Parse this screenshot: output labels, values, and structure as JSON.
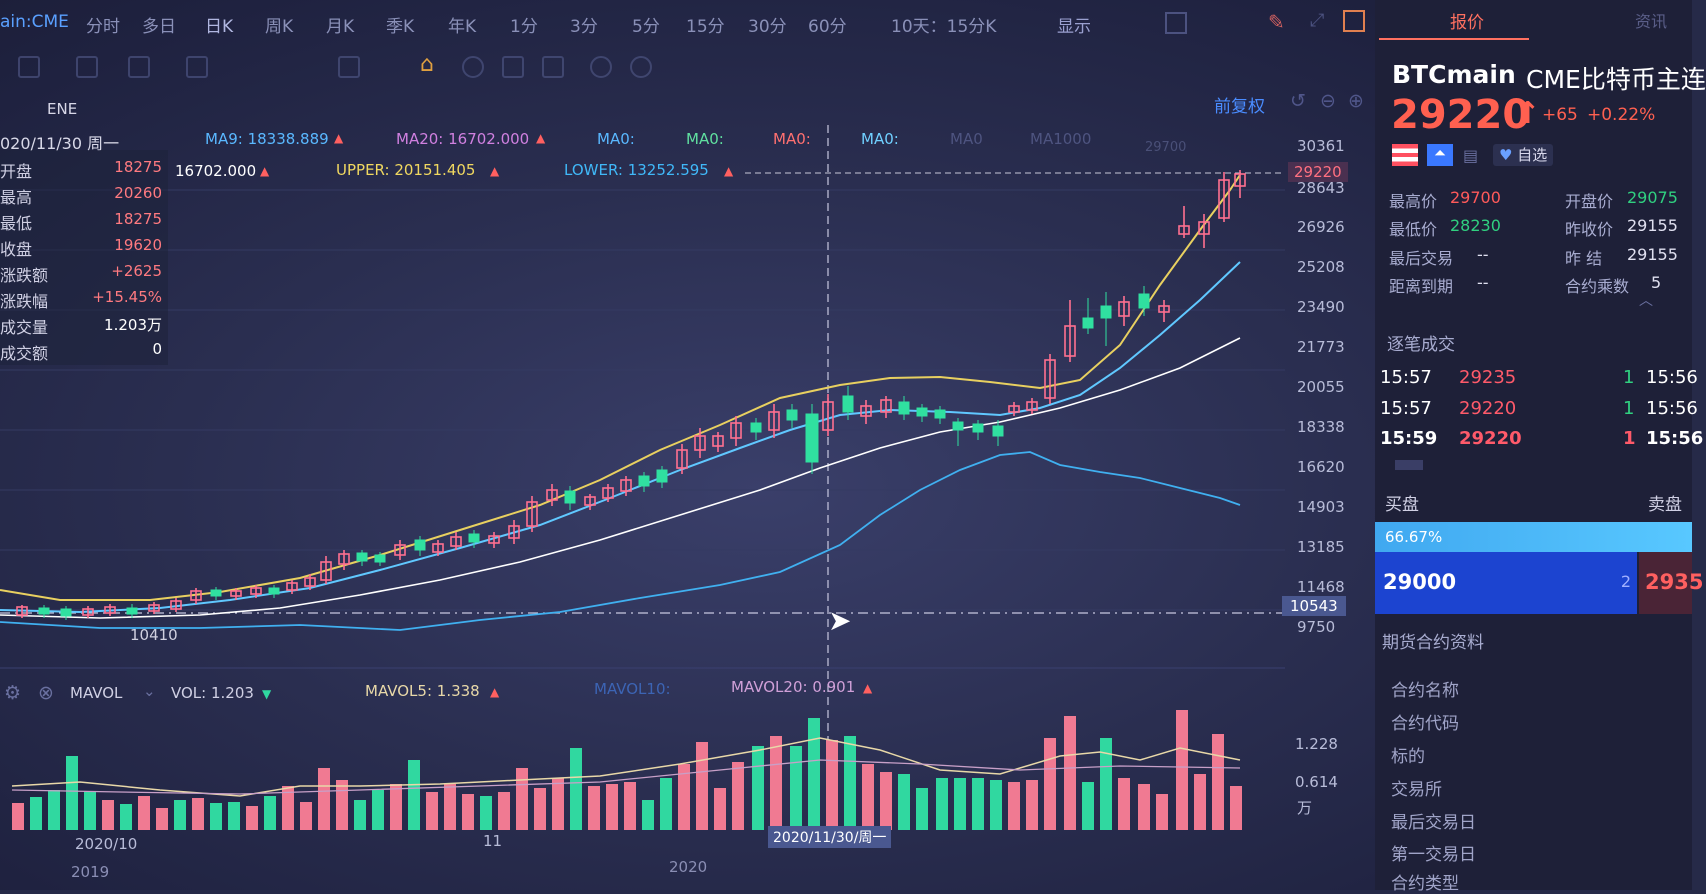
{
  "toolbar": {
    "symbol": "ain:CME",
    "items": [
      "分时",
      "多日",
      "日K",
      "周K",
      "月K",
      "季K",
      "年K",
      "1分",
      "3分",
      "5分",
      "15分",
      "30分",
      "60分",
      "10天：15分K"
    ],
    "display": "显示"
  },
  "indicators": {
    "ene_label": "ENE",
    "date_label": "020/11/30 周一",
    "ma9": "MA9: 18338.889",
    "ma20": "MA20: 16702.000",
    "ma0a": "MA0:",
    "ma0b": "MA0:",
    "ma0c": "MA0:",
    "ma0d": "MA0:",
    "ma0e": "MA0",
    "ma1000": "MA1000",
    "ene_mid": "16702.000",
    "upper": "UPPER: 20151.405",
    "lower": "LOWER: 13252.595",
    "restore": "前复权",
    "faint": "29700"
  },
  "info_panel": {
    "rows": [
      {
        "label": "开盘",
        "value": "18275"
      },
      {
        "label": "最高",
        "value": "20260"
      },
      {
        "label": "最低",
        "value": "18275"
      },
      {
        "label": "收盘",
        "value": "19620"
      },
      {
        "label": "涨跌额",
        "value": "+2625"
      },
      {
        "label": "涨跌幅",
        "value": "+15.45%"
      },
      {
        "label": "成交量",
        "value": "1.203万"
      },
      {
        "label": "成交额",
        "value": "0"
      }
    ]
  },
  "price_axis": {
    "ticks": [
      "30361",
      "28643",
      "26926",
      "25208",
      "23490",
      "21773",
      "20055",
      "18338",
      "16620",
      "14903",
      "13185",
      "11468",
      "9750"
    ],
    "current_price_tag": "29220",
    "cursor_price_tag": "10543",
    "low_marker": "10410"
  },
  "volume": {
    "indicator": "MAVOL",
    "vol": "VOL: 1.203",
    "mavol5": "MAVOL5: 1.338",
    "mavol10": "MAVOL10:",
    "mavol20": "MAVOL20: 0.901",
    "ticks": [
      "1.228",
      "0.614",
      "万"
    ]
  },
  "time_axis": {
    "labels_top": [
      "2020/10",
      "11"
    ],
    "labels_bottom": [
      "2019",
      "2020"
    ],
    "cursor_date": "2020/11/30/周一"
  },
  "quote": {
    "tab": "报价",
    "tab2": "资讯",
    "symbol": "BTCmain",
    "name": "CME比特币主连",
    "price": "29220",
    "change": "+65",
    "change_pct": "+0.22%",
    "watch_label": "自选",
    "stats": [
      {
        "label": "最高价",
        "value": "29700",
        "color": "#ff5a5a"
      },
      {
        "label": "开盘价",
        "value": "29075",
        "color": "#30d080"
      },
      {
        "label": "最低价",
        "value": "28230",
        "color": "#30d080"
      },
      {
        "label": "昨收价",
        "value": "29155",
        "color": "#e0e0f0"
      },
      {
        "label": "最后交易",
        "value": "--",
        "color": "#e0e0f0"
      },
      {
        "label": "昨 结",
        "value": "29155",
        "color": "#e0e0f0"
      },
      {
        "label": "距离到期",
        "value": "--",
        "color": "#e0e0f0"
      },
      {
        "label": "合约乘数",
        "value": "5",
        "color": "#e0e0f0"
      }
    ],
    "trades_title": "逐笔成交",
    "trades": [
      {
        "time": "15:57",
        "price": "29235",
        "qty": "1",
        "time2": "15:56"
      },
      {
        "time": "15:57",
        "price": "29220",
        "qty": "1",
        "time2": "15:56"
      },
      {
        "time": "15:59",
        "price": "29220",
        "qty": "1",
        "time2": "15:56"
      }
    ],
    "buy_label": "买盘",
    "sell_label": "卖盘",
    "buy_pct": "66.67%",
    "bid_price": "29000",
    "bid_qty": "2",
    "ask_price": "2935",
    "contract_title": "期货合约资料",
    "contract_rows": [
      "合约名称",
      "合约代码",
      "标的",
      "交易所",
      "最后交易日",
      "第一交易日",
      "合约类型"
    ]
  },
  "chart_data": {
    "type": "candlestick",
    "price_range": [
      9750,
      30361
    ],
    "volume_unit": "万",
    "note_series": [
      "MA9",
      "MA20",
      "UPPER",
      "LOWER"
    ]
  }
}
